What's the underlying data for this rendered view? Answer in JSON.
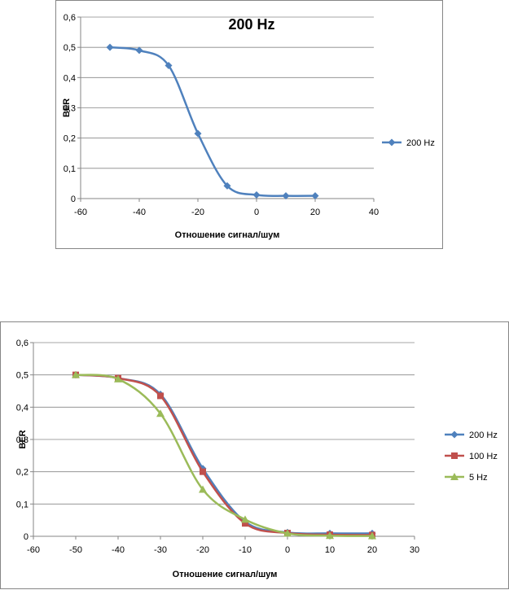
{
  "chart_data": [
    {
      "type": "line",
      "title": "200 Hz",
      "xlabel": "Отношение сигнал/шум",
      "ylabel": "BER",
      "xlim": [
        -60,
        40
      ],
      "ylim": [
        0,
        0.6
      ],
      "x_ticks": [
        "-60",
        "-40",
        "-20",
        "0",
        "20",
        "40"
      ],
      "y_ticks": [
        "0",
        "0,1",
        "0,2",
        "0,3",
        "0,4",
        "0,5",
        "0,6"
      ],
      "grid": "horizontal",
      "legend": "right",
      "series": [
        {
          "name": "200 Hz",
          "color": "#4F81BD",
          "marker": "diamond",
          "x": [
            -50,
            -40,
            -30,
            -20,
            -10,
            0,
            10,
            20
          ],
          "y": [
            0.5,
            0.49,
            0.44,
            0.215,
            0.042,
            0.012,
            0.009,
            0.009
          ]
        }
      ]
    },
    {
      "type": "line",
      "title": "",
      "xlabel": "Отношение сигнал/шум",
      "ylabel": "BER",
      "xlim": [
        -60,
        30
      ],
      "ylim": [
        0,
        0.6
      ],
      "x_ticks": [
        "-60",
        "-50",
        "-40",
        "-30",
        "-20",
        "-10",
        "0",
        "10",
        "20",
        "30"
      ],
      "y_ticks": [
        "0",
        "0,1",
        "0,2",
        "0,3",
        "0,4",
        "0,5",
        "0,6"
      ],
      "grid": "horizontal",
      "legend": "right",
      "series": [
        {
          "name": "200 Hz",
          "color": "#4F81BD",
          "marker": "diamond",
          "x": [
            -50,
            -40,
            -30,
            -20,
            -10,
            0,
            10,
            20
          ],
          "y": [
            0.5,
            0.49,
            0.44,
            0.21,
            0.045,
            0.012,
            0.009,
            0.009
          ]
        },
        {
          "name": "100 Hz",
          "color": "#C0504D",
          "marker": "square",
          "x": [
            -50,
            -40,
            -30,
            -20,
            -10,
            0,
            10,
            20
          ],
          "y": [
            0.5,
            0.49,
            0.435,
            0.2,
            0.04,
            0.01,
            0.005,
            0.004
          ]
        },
        {
          "name": "5 Hz",
          "color": "#9BBB59",
          "marker": "triangle",
          "x": [
            -50,
            -40,
            -30,
            -20,
            -10,
            0,
            10,
            20
          ],
          "y": [
            0.5,
            0.487,
            0.38,
            0.145,
            0.052,
            0.009,
            0.002,
            0.001
          ]
        }
      ]
    }
  ]
}
